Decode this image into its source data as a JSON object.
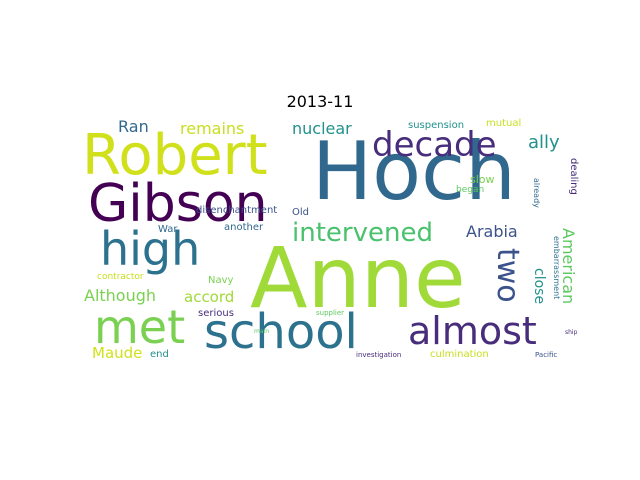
{
  "title": "2013-11",
  "words": [
    {
      "text": "Hoch",
      "color": "#31688e"
    },
    {
      "text": "Anne",
      "color": "#a0da39"
    },
    {
      "text": "Robert",
      "color": "#d0e11c"
    },
    {
      "text": "Gibson",
      "color": "#440154"
    },
    {
      "text": "high",
      "color": "#2c728e"
    },
    {
      "text": "school",
      "color": "#2c728e"
    },
    {
      "text": "met",
      "color": "#7ad151"
    },
    {
      "text": "almost",
      "color": "#472d7b"
    },
    {
      "text": "decade",
      "color": "#472d7b"
    },
    {
      "text": "intervened",
      "color": "#4ac16d"
    },
    {
      "text": "two",
      "color": "#3b528b"
    },
    {
      "text": "Arabia",
      "color": "#3b528b"
    },
    {
      "text": "close",
      "color": "#21918c"
    },
    {
      "text": "ally",
      "color": "#21918c"
    },
    {
      "text": "American",
      "color": "#5ec962"
    },
    {
      "text": "Although",
      "color": "#7ad151"
    },
    {
      "text": "accord",
      "color": "#a0da39"
    },
    {
      "text": "nuclear",
      "color": "#21918c"
    },
    {
      "text": "remains",
      "color": "#c8e020"
    },
    {
      "text": "Ran",
      "color": "#31688e"
    },
    {
      "text": "Maude",
      "color": "#d0e11c"
    },
    {
      "text": "disenchantment",
      "color": "#3b528b"
    },
    {
      "text": "War",
      "color": "#31688e"
    },
    {
      "text": "another",
      "color": "#31688e"
    },
    {
      "text": "Old",
      "color": "#3b528b"
    },
    {
      "text": "suspension",
      "color": "#21918c"
    },
    {
      "text": "mutual",
      "color": "#c8e020"
    },
    {
      "text": "slow",
      "color": "#7ad151"
    },
    {
      "text": "began",
      "color": "#5ec962"
    },
    {
      "text": "already",
      "color": "#31688e"
    },
    {
      "text": "dealing",
      "color": "#472d7b"
    },
    {
      "text": "embarrassment",
      "color": "#2c728e"
    },
    {
      "text": "contractor",
      "color": "#c8e020"
    },
    {
      "text": "Navy",
      "color": "#7ad151"
    },
    {
      "text": "serious",
      "color": "#472d7b"
    },
    {
      "text": "supplier",
      "color": "#5ec962"
    },
    {
      "text": "main",
      "color": "#5ec962"
    },
    {
      "text": "end",
      "color": "#21918c"
    },
    {
      "text": "culmination",
      "color": "#c8e020"
    },
    {
      "text": "investigation",
      "color": "#472d7b"
    },
    {
      "text": "Pacific",
      "color": "#3b528b"
    },
    {
      "text": "ship",
      "color": "#472d7b"
    }
  ]
}
